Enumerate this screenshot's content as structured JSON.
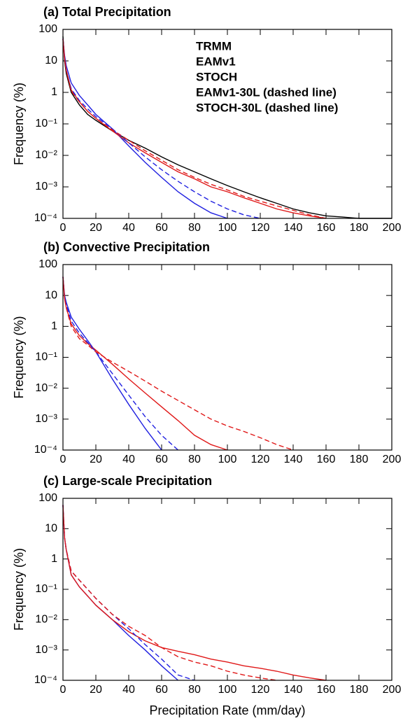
{
  "chart_data": [
    {
      "type": "line",
      "title": "(a) Total Precipitation",
      "ylabel": "Frequency (%)",
      "x": [
        0,
        1,
        2,
        5,
        10,
        15,
        20,
        30,
        40,
        50,
        60,
        70,
        80,
        90,
        100,
        110,
        120,
        130,
        140,
        150,
        160,
        170,
        180,
        190,
        200
      ],
      "xlim": [
        0,
        200
      ],
      "xticks": [
        0,
        20,
        40,
        60,
        80,
        100,
        120,
        140,
        160,
        180,
        200
      ],
      "ylim": [
        0.0001,
        100
      ],
      "log_y": true,
      "yticks": [
        100,
        10,
        1,
        {
          "value": 0.1,
          "label": "10⁻¹"
        },
        {
          "value": 0.01,
          "label": "10⁻²"
        },
        {
          "value": 0.001,
          "label": "10⁻³"
        },
        {
          "value": 0.0001,
          "label": "10⁻⁴"
        }
      ],
      "legend": "upper right",
      "series": [
        {
          "name": "TRMM",
          "color": "#000000",
          "dashed": false,
          "values": [
            60,
            10,
            4,
            1,
            0.4,
            0.2,
            0.13,
            0.06,
            0.03,
            0.017,
            0.009,
            0.005,
            0.003,
            0.0018,
            0.0011,
            0.0007,
            0.00045,
            0.0003,
            0.0002,
            0.00015,
            0.00012,
            0.00011,
            0.0001,
            0.0001,
            0.0001
          ]
        },
        {
          "name": "EAMv1",
          "color": "#2020e0",
          "dashed": false,
          "values": [
            50,
            15,
            7,
            2,
            0.8,
            0.4,
            0.2,
            0.07,
            0.02,
            0.006,
            0.002,
            0.0007,
            0.0003,
            0.00015,
            0.0001,
            null,
            null,
            null,
            null,
            null,
            null,
            null,
            null,
            null,
            null
          ]
        },
        {
          "name": "STOCH",
          "color": "#e01818",
          "dashed": false,
          "values": [
            50,
            12,
            5,
            1.2,
            0.5,
            0.25,
            0.15,
            0.06,
            0.025,
            0.012,
            0.006,
            0.003,
            0.0018,
            0.001,
            0.0007,
            0.00045,
            0.0003,
            0.0002,
            0.00015,
            0.00012,
            0.0001,
            null,
            null,
            null,
            null
          ]
        },
        {
          "name": "EAMv1-30L (dashed line)",
          "color": "#2020e0",
          "dashed": true,
          "values": [
            50,
            12,
            5,
            1.3,
            0.55,
            0.3,
            0.17,
            0.07,
            0.025,
            0.009,
            0.0035,
            0.0015,
            0.0007,
            0.00035,
            0.0002,
            0.00013,
            0.0001,
            null,
            null,
            null,
            null,
            null,
            null,
            null,
            null
          ]
        },
        {
          "name": "STOCH-30L (dashed line)",
          "color": "#e01818",
          "dashed": true,
          "values": [
            50,
            12,
            5,
            1.1,
            0.5,
            0.25,
            0.15,
            0.065,
            0.03,
            0.014,
            0.007,
            0.0035,
            0.002,
            0.0012,
            0.0008,
            0.0005,
            0.00035,
            0.00025,
            0.00018,
            0.00013,
            0.0001,
            null,
            null,
            null,
            null
          ]
        }
      ]
    },
    {
      "type": "line",
      "title": "(b) Convective Precipitation",
      "ylabel": "Frequency (%)",
      "x": [
        0,
        1,
        2,
        5,
        10,
        15,
        20,
        30,
        40,
        50,
        60,
        70,
        80,
        90,
        100,
        110,
        120,
        130,
        140,
        150,
        160,
        170,
        180,
        190,
        200
      ],
      "xlim": [
        0,
        200
      ],
      "xticks": [
        0,
        20,
        40,
        60,
        80,
        100,
        120,
        140,
        160,
        180,
        200
      ],
      "ylim": [
        0.0001,
        100
      ],
      "log_y": true,
      "yticks": [
        100,
        10,
        1,
        {
          "value": 0.1,
          "label": "10⁻¹"
        },
        {
          "value": 0.01,
          "label": "10⁻²"
        },
        {
          "value": 0.001,
          "label": "10⁻³"
        },
        {
          "value": 0.0001,
          "label": "10⁻⁴"
        }
      ],
      "series": [
        {
          "color": "#2020e0",
          "dashed": false,
          "values": [
            40,
            10,
            6,
            2,
            0.8,
            0.35,
            0.15,
            0.02,
            0.003,
            0.0005,
            0.0001,
            null,
            null,
            null,
            null,
            null,
            null,
            null,
            null,
            null,
            null,
            null,
            null,
            null,
            null
          ]
        },
        {
          "color": "#e01818",
          "dashed": false,
          "values": [
            40,
            8,
            4,
            1.2,
            0.5,
            0.28,
            0.17,
            0.06,
            0.02,
            0.007,
            0.0025,
            0.0009,
            0.0003,
            0.00015,
            0.0001,
            null,
            null,
            null,
            null,
            null,
            null,
            null,
            null,
            null,
            null
          ]
        },
        {
          "color": "#2020e0",
          "dashed": true,
          "values": [
            40,
            9,
            5,
            1.5,
            0.6,
            0.3,
            0.15,
            0.03,
            0.006,
            0.0012,
            0.0003,
            0.0001,
            null,
            null,
            null,
            null,
            null,
            null,
            null,
            null,
            null,
            null,
            null,
            null,
            null
          ]
        },
        {
          "color": "#e01818",
          "dashed": true,
          "values": [
            40,
            8,
            4,
            1,
            0.4,
            0.25,
            0.15,
            0.07,
            0.035,
            0.017,
            0.008,
            0.004,
            0.002,
            0.001,
            0.0006,
            0.0004,
            0.00025,
            0.00015,
            0.0001,
            null,
            null,
            null,
            null,
            null,
            null
          ]
        }
      ]
    },
    {
      "type": "line",
      "title": "(c) Large-scale Precipitation",
      "ylabel": "Frequency (%)",
      "xlabel": "Precipitation Rate (mm/day)",
      "x": [
        0,
        1,
        2,
        5,
        10,
        15,
        20,
        30,
        40,
        50,
        60,
        70,
        80,
        90,
        100,
        110,
        120,
        130,
        140,
        150,
        160,
        170,
        180,
        190,
        200
      ],
      "xlim": [
        0,
        200
      ],
      "xticks": [
        0,
        20,
        40,
        60,
        80,
        100,
        120,
        140,
        160,
        180,
        200
      ],
      "ylim": [
        0.0001,
        100
      ],
      "log_y": true,
      "yticks": [
        100,
        10,
        1,
        {
          "value": 0.1,
          "label": "10⁻¹"
        },
        {
          "value": 0.01,
          "label": "10⁻²"
        },
        {
          "value": 0.001,
          "label": "10⁻³"
        },
        {
          "value": 0.0001,
          "label": "10⁻⁴"
        }
      ],
      "series": [
        {
          "color": "#2020e0",
          "dashed": false,
          "values": [
            60,
            5,
            2,
            0.3,
            0.12,
            0.06,
            0.03,
            0.01,
            0.003,
            0.001,
            0.0003,
            0.0001,
            null,
            null,
            null,
            null,
            null,
            null,
            null,
            null,
            null,
            null,
            null,
            null,
            null
          ]
        },
        {
          "color": "#e01818",
          "dashed": false,
          "values": [
            60,
            5,
            2,
            0.3,
            0.12,
            0.06,
            0.03,
            0.01,
            0.004,
            0.002,
            0.0012,
            0.0009,
            0.0007,
            0.0005,
            0.0004,
            0.0003,
            0.00025,
            0.0002,
            0.00015,
            0.00012,
            0.0001,
            null,
            null,
            null,
            null
          ]
        },
        {
          "color": "#2020e0",
          "dashed": true,
          "values": [
            60,
            5,
            2,
            0.4,
            0.2,
            0.1,
            0.05,
            0.015,
            0.005,
            0.0015,
            0.0005,
            0.00015,
            0.0001,
            null,
            null,
            null,
            null,
            null,
            null,
            null,
            null,
            null,
            null,
            null,
            null
          ]
        },
        {
          "color": "#e01818",
          "dashed": true,
          "values": [
            60,
            5,
            2,
            0.4,
            0.2,
            0.1,
            0.05,
            0.015,
            0.006,
            0.003,
            0.0012,
            0.0006,
            0.0004,
            0.0003,
            0.0002,
            0.00015,
            0.00012,
            0.0001,
            null,
            null,
            null,
            null,
            null,
            null,
            null
          ]
        }
      ]
    }
  ]
}
